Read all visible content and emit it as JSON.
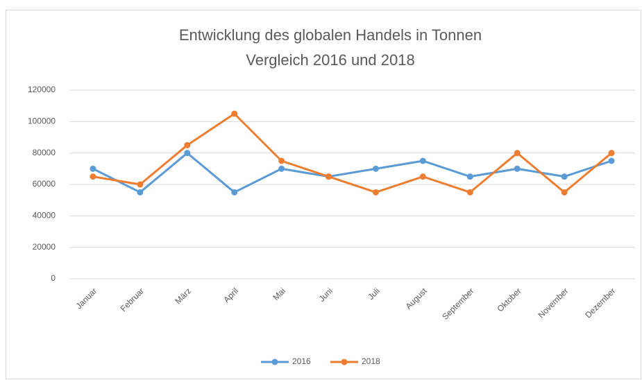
{
  "chart_data": {
    "type": "line",
    "title": [
      "Entwicklung des globalen Handels in Tonnen",
      "Vergleich 2016 und 2018"
    ],
    "categories": [
      "Januar",
      "Februar",
      "März",
      "April",
      "Mai",
      "Juni",
      "Juli",
      "August",
      "September",
      "Oktober",
      "November",
      "Dezember"
    ],
    "series": [
      {
        "name": "2016",
        "color": "#5b9bd5",
        "values": [
          70000,
          55000,
          80000,
          55000,
          70000,
          65000,
          70000,
          75000,
          65000,
          70000,
          65000,
          75000
        ]
      },
      {
        "name": "2018",
        "color": "#ed7d31",
        "values": [
          65000,
          60000,
          85000,
          105000,
          75000,
          65000,
          55000,
          65000,
          55000,
          80000,
          55000,
          80000
        ]
      }
    ],
    "ylim": [
      0,
      120000
    ],
    "yticks": [
      0,
      20000,
      40000,
      60000,
      80000,
      100000,
      120000
    ],
    "grid": true,
    "legend": "bottom"
  }
}
